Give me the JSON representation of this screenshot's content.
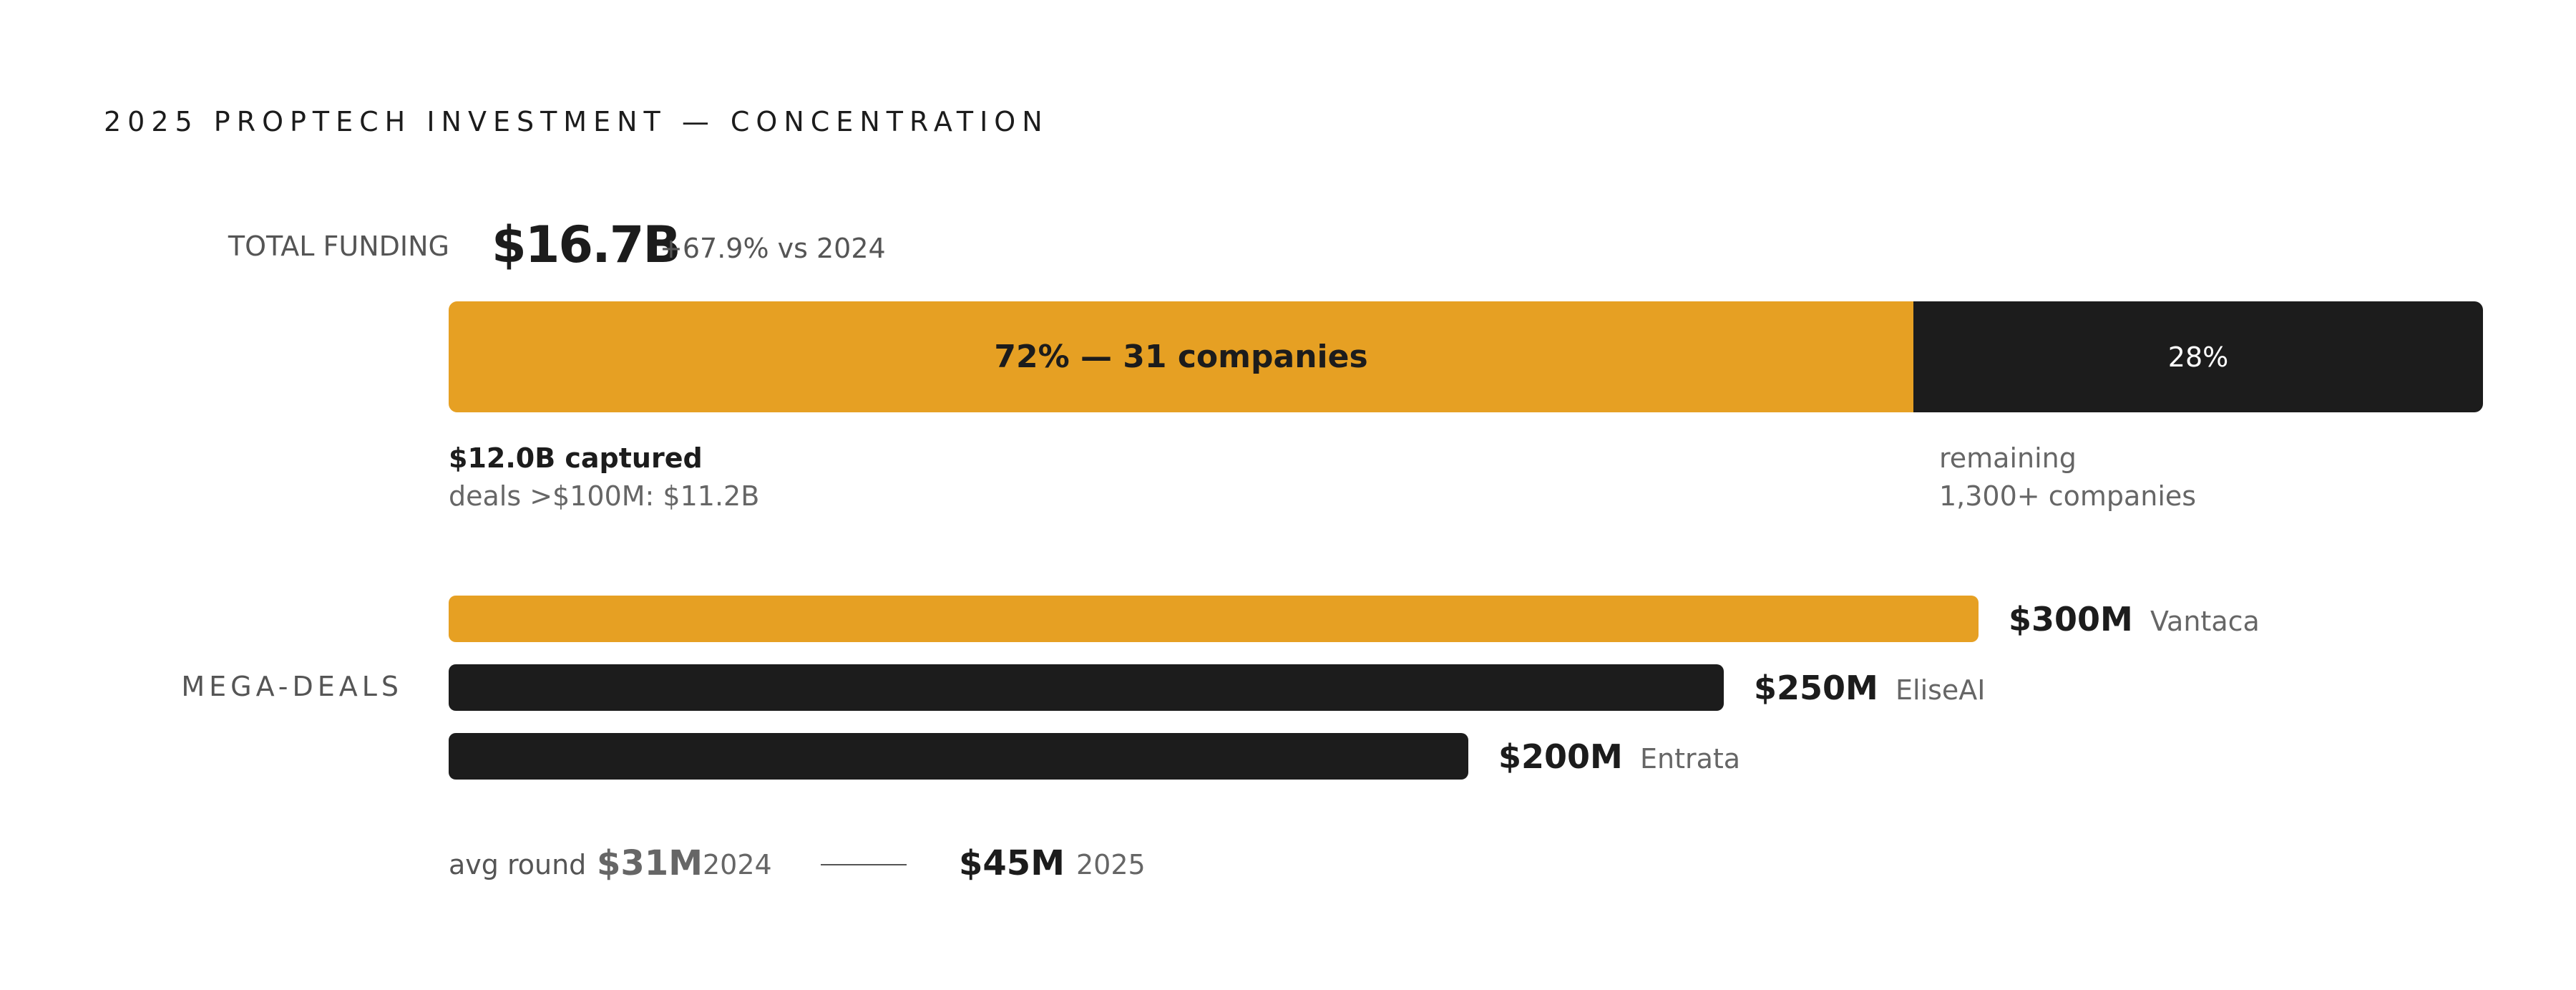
{
  "title": "2025 PROPTECH INVESTMENT — CONCENTRATION",
  "colors": {
    "accent": "#E6A023",
    "dark": "#1C1C1C",
    "muted": "#666666"
  },
  "total": {
    "label": "TOTAL FUNDING",
    "value": "$16.7B",
    "change": "+67.9% vs 2024"
  },
  "concentration": {
    "major_label": "72% — 31 companies",
    "minor_label": "28%",
    "captured": "$12.0B captured",
    "captured_sub": "deals >$100M: $11.2B",
    "remaining": "remaining",
    "remaining_sub": "1,300+ companies"
  },
  "mega": {
    "label": "MEGA-DEALS"
  },
  "avg_round": {
    "label": "avg round",
    "v2024": "$31M",
    "y2024": "2024",
    "v2025": "$45M",
    "y2025": "2025"
  },
  "chart_data": [
    {
      "type": "bar",
      "orientation": "horizontal-stacked",
      "categories": [
        "Top 31 companies",
        "Remaining companies"
      ],
      "values": [
        72,
        28
      ],
      "unit": "%",
      "labels": [
        "72% — 31 companies",
        "28%"
      ],
      "colors": [
        "#E6A023",
        "#1C1C1C"
      ]
    },
    {
      "type": "bar",
      "orientation": "horizontal",
      "categories": [
        "Vantaca",
        "EliseAI",
        "Entrata"
      ],
      "values": [
        300,
        250,
        200
      ],
      "value_labels": [
        "$300M",
        "$250M",
        "$200M"
      ],
      "unit": "$M",
      "colors": [
        "#E6A023",
        "#1C1C1C",
        "#1C1C1C"
      ]
    }
  ]
}
